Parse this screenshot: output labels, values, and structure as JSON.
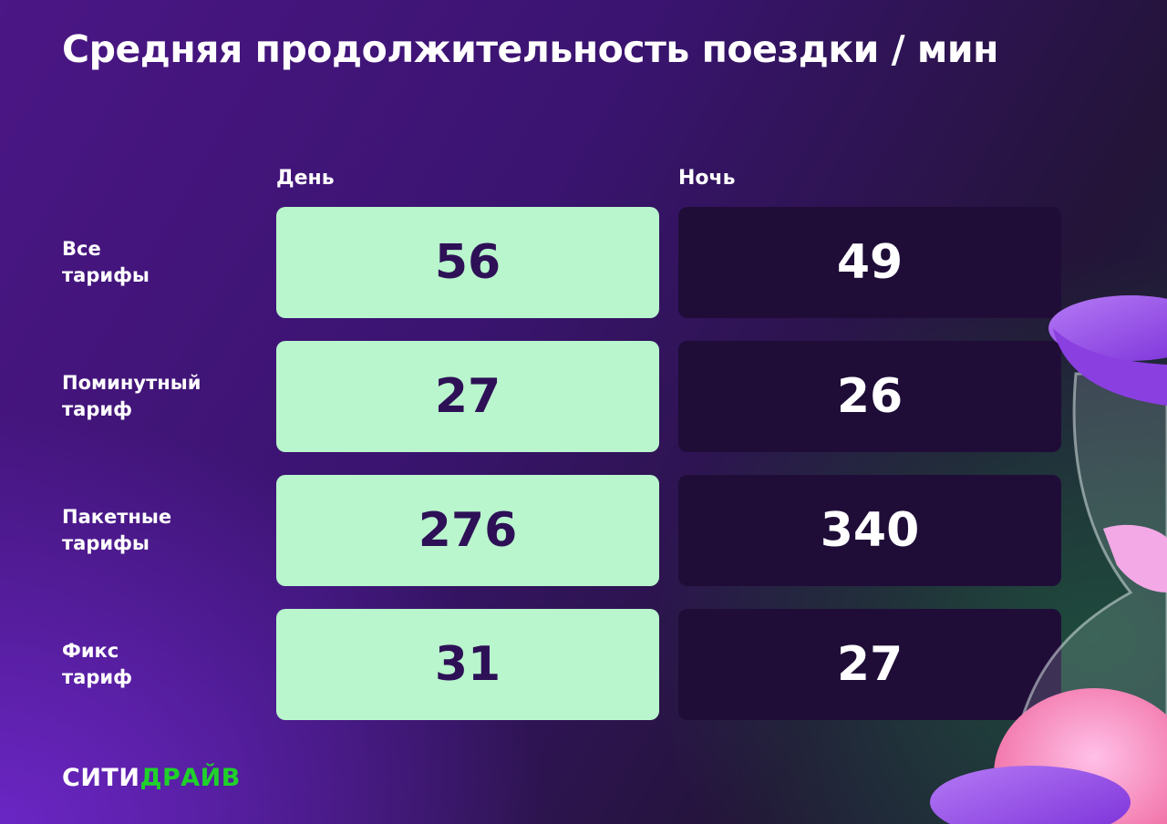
{
  "title": "Средняя продолжительность поездки / мин",
  "chart_data": {
    "type": "table",
    "columns": [
      "День",
      "Ночь"
    ],
    "rows": [
      {
        "label_line1": "Все",
        "label_line2": "тарифы",
        "values": [
          "56",
          "49"
        ]
      },
      {
        "label_line1": "Поминутный",
        "label_line2": "тариф",
        "values": [
          "27",
          "26"
        ]
      },
      {
        "label_line1": "Пакетные",
        "label_line2": "тарифы",
        "values": [
          "276",
          "340"
        ]
      },
      {
        "label_line1": "Фикс",
        "label_line2": "тариф",
        "values": [
          "31",
          "27"
        ]
      }
    ]
  },
  "logo": {
    "part1": "СИТИ",
    "part2": "ДРАЙВ"
  },
  "colors": {
    "day_cell": "#b9f5cd",
    "night_cell": "#1f0d38",
    "logo_green": "#1fd12a",
    "background": "#4b1685"
  }
}
